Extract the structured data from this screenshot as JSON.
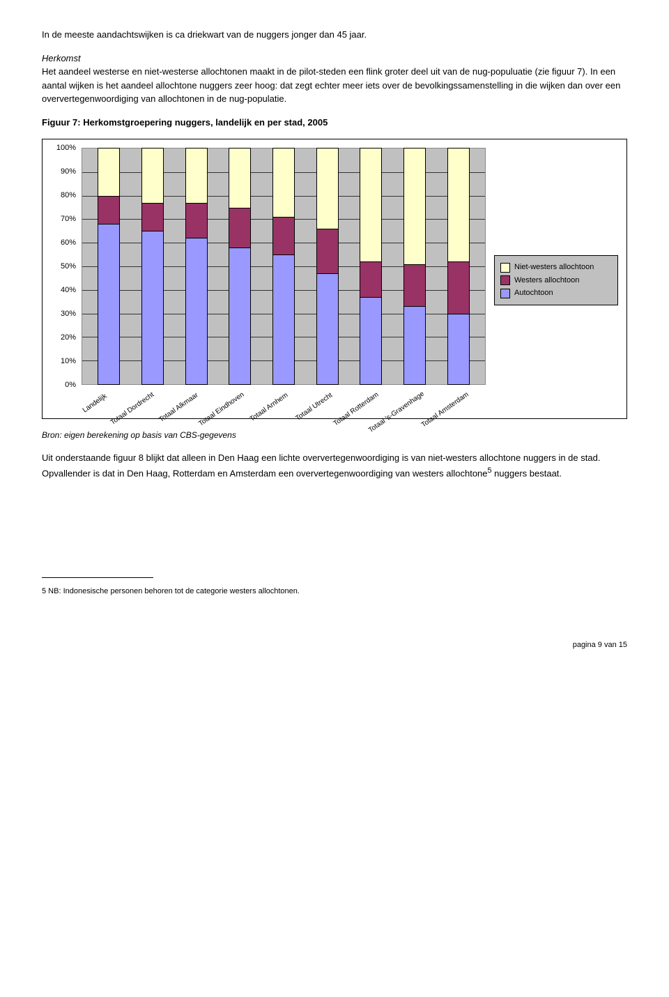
{
  "intro": "In de meeste aandachtswijken is ca driekwart van de nuggers jonger dan 45 jaar.",
  "herkomst_heading": "Herkomst",
  "herkomst_para": "Het aandeel westerse en niet-westerse allochtonen maakt in de pilot-steden een flink groter deel uit van de nug-populuatie (zie figuur 7). In een aantal wijken is het aandeel allochtone nuggers zeer hoog: dat zegt echter meer iets over de bevolkingssamenstelling in die wijken dan over een oververtegenwoordiging van allochtonen in de nug-populatie.",
  "figure_title": "Figuur 7: Herkomstgroepering nuggers, landelijk en per stad, 2005",
  "chart": {
    "type": "stacked-bar",
    "ylim": [
      0,
      100
    ],
    "ytick_step": 10,
    "background_color": "#c0c0c0",
    "gridline_color": "#333333",
    "categories": [
      "Landelijk",
      "Totaal Dordrecht",
      "Totaal Alkmaar",
      "Totaal Eindhoven",
      "Totaal Arnhem",
      "Totaal Utrecht",
      "Totaal Rotterdam",
      "Totaal 's-Gravenhage",
      "Totaal Amsterdam"
    ],
    "series": [
      {
        "name": "Autochtoon",
        "color": "#9999ff",
        "values": [
          68,
          65,
          62,
          58,
          55,
          47,
          37,
          33,
          30
        ]
      },
      {
        "name": "Westers allochtoon",
        "color": "#993366",
        "values": [
          12,
          12,
          15,
          17,
          16,
          19,
          15,
          18,
          22
        ]
      },
      {
        "name": "Niet-westers allochtoon",
        "color": "#ffffcc",
        "values": [
          20,
          23,
          23,
          25,
          29,
          34,
          48,
          49,
          48
        ]
      }
    ],
    "legend": [
      "Niet-westers allochtoon",
      "Westers allochtoon",
      "Autochtoon"
    ],
    "legend_colors": [
      "#ffffcc",
      "#993366",
      "#9999ff"
    ]
  },
  "source_caption": "Bron: eigen berekening op basis van CBS-gegevens",
  "closing_para_pre": "Uit onderstaande figuur 8 blijkt dat alleen in Den Haag een lichte oververtegenwoordiging is van niet-westers allochtone nuggers in de stad. Opvallender is dat in Den Haag, Rotterdam en Amsterdam een oververtegenwoordiging van westers allochtone",
  "closing_super": "5",
  "closing_para_post": " nuggers bestaat.",
  "footnote": "5 NB: Indonesische personen behoren tot de categorie westers allochtonen.",
  "pagenum": "pagina 9 van 15"
}
